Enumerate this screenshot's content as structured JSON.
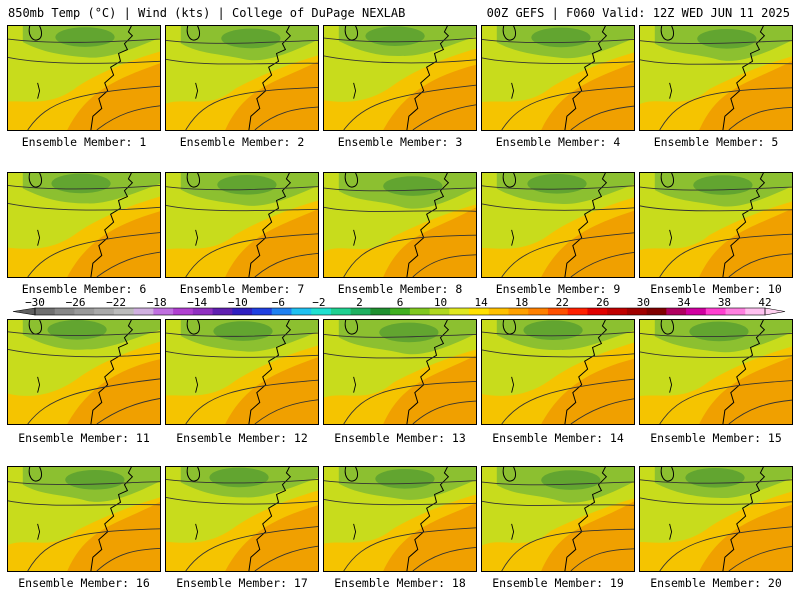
{
  "header": {
    "left_title": "850mb Temp (°C) | Wind (kts) | College of DuPage NEXLAB",
    "right_title": "00Z GEFS | F060 Valid: 12Z WED JUN 11 2025"
  },
  "panel_label_prefix": "Ensemble Member:",
  "members": [
    1,
    2,
    3,
    4,
    5,
    6,
    7,
    8,
    9,
    10,
    11,
    12,
    13,
    14,
    15,
    16,
    17,
    18,
    19,
    20
  ],
  "colorbar": {
    "ticks": [
      -30,
      -26,
      -22,
      -18,
      -14,
      -10,
      -6,
      -2,
      2,
      6,
      10,
      14,
      18,
      22,
      26,
      30,
      34,
      38,
      42
    ],
    "colors": [
      "#707070",
      "#888888",
      "#9a9a9a",
      "#aaaaaa",
      "#bcbcbc",
      "#d0b0e0",
      "#c070e0",
      "#b040d0",
      "#9030c0",
      "#6020b0",
      "#3020c0",
      "#2040e0",
      "#2080f0",
      "#20c0f0",
      "#20e0d0",
      "#20d090",
      "#20b060",
      "#209030",
      "#40b020",
      "#80c820",
      "#b0d820",
      "#e0e820",
      "#ffe000",
      "#ffc000",
      "#ffa000",
      "#ff8000",
      "#ff5000",
      "#ff2000",
      "#e00000",
      "#c00000",
      "#a00000",
      "#800000",
      "#b00060",
      "#d000a0",
      "#ff40d0",
      "#ff80e0",
      "#ffc0f0"
    ]
  }
}
